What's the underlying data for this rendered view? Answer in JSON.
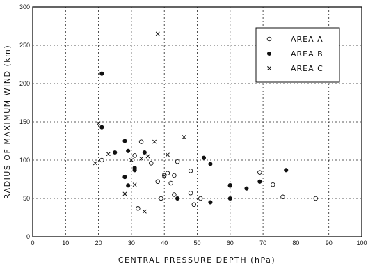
{
  "chart_data": {
    "type": "scatter",
    "title": "",
    "xlabel": "CENTRAL PRESSURE DEPTH (hPa)",
    "ylabel": "RADIUS OF MAXIMUM WIND (km)",
    "xlim": [
      0,
      100
    ],
    "ylim": [
      0,
      300
    ],
    "xticks": [
      "0",
      "10",
      "20",
      "30",
      "40",
      "50",
      "60",
      "70",
      "80",
      "90",
      "100"
    ],
    "yticks": [
      "0",
      "50",
      "100",
      "150",
      "200",
      "250",
      "300"
    ],
    "grid": true,
    "legend_position": "top-right",
    "series": [
      {
        "name": "AREA A",
        "marker": "open-circle",
        "points": [
          [
            21,
            100
          ],
          [
            31,
            106
          ],
          [
            33,
            124
          ],
          [
            36,
            96
          ],
          [
            38,
            72
          ],
          [
            40,
            80
          ],
          [
            41,
            83
          ],
          [
            42,
            70
          ],
          [
            43,
            80
          ],
          [
            44,
            98
          ],
          [
            43,
            55
          ],
          [
            48,
            57
          ],
          [
            48,
            86
          ],
          [
            49,
            42
          ],
          [
            51,
            50
          ],
          [
            60,
            67
          ],
          [
            69,
            84
          ],
          [
            73,
            68
          ],
          [
            76,
            52
          ],
          [
            86,
            50
          ],
          [
            32,
            37
          ],
          [
            39,
            50
          ]
        ]
      },
      {
        "name": "AREA B",
        "marker": "filled-circle",
        "points": [
          [
            21,
            213
          ],
          [
            21,
            143
          ],
          [
            25,
            110
          ],
          [
            28,
            125
          ],
          [
            28,
            78
          ],
          [
            29,
            112
          ],
          [
            29,
            67
          ],
          [
            31,
            90
          ],
          [
            31,
            87
          ],
          [
            34,
            110
          ],
          [
            44,
            50
          ],
          [
            52,
            103
          ],
          [
            54,
            95
          ],
          [
            54,
            45
          ],
          [
            60,
            67
          ],
          [
            60,
            50
          ],
          [
            65,
            63
          ],
          [
            69,
            72
          ],
          [
            77,
            87
          ]
        ]
      },
      {
        "name": "AREA C",
        "marker": "x",
        "points": [
          [
            19,
            96
          ],
          [
            20,
            148
          ],
          [
            23,
            108
          ],
          [
            30,
            100
          ],
          [
            31,
            68
          ],
          [
            28,
            56
          ],
          [
            33,
            102
          ],
          [
            34,
            33
          ],
          [
            35,
            105
          ],
          [
            37,
            124
          ],
          [
            38,
            265
          ],
          [
            40,
            80
          ],
          [
            41,
            107
          ],
          [
            46,
            130
          ]
        ]
      }
    ]
  }
}
